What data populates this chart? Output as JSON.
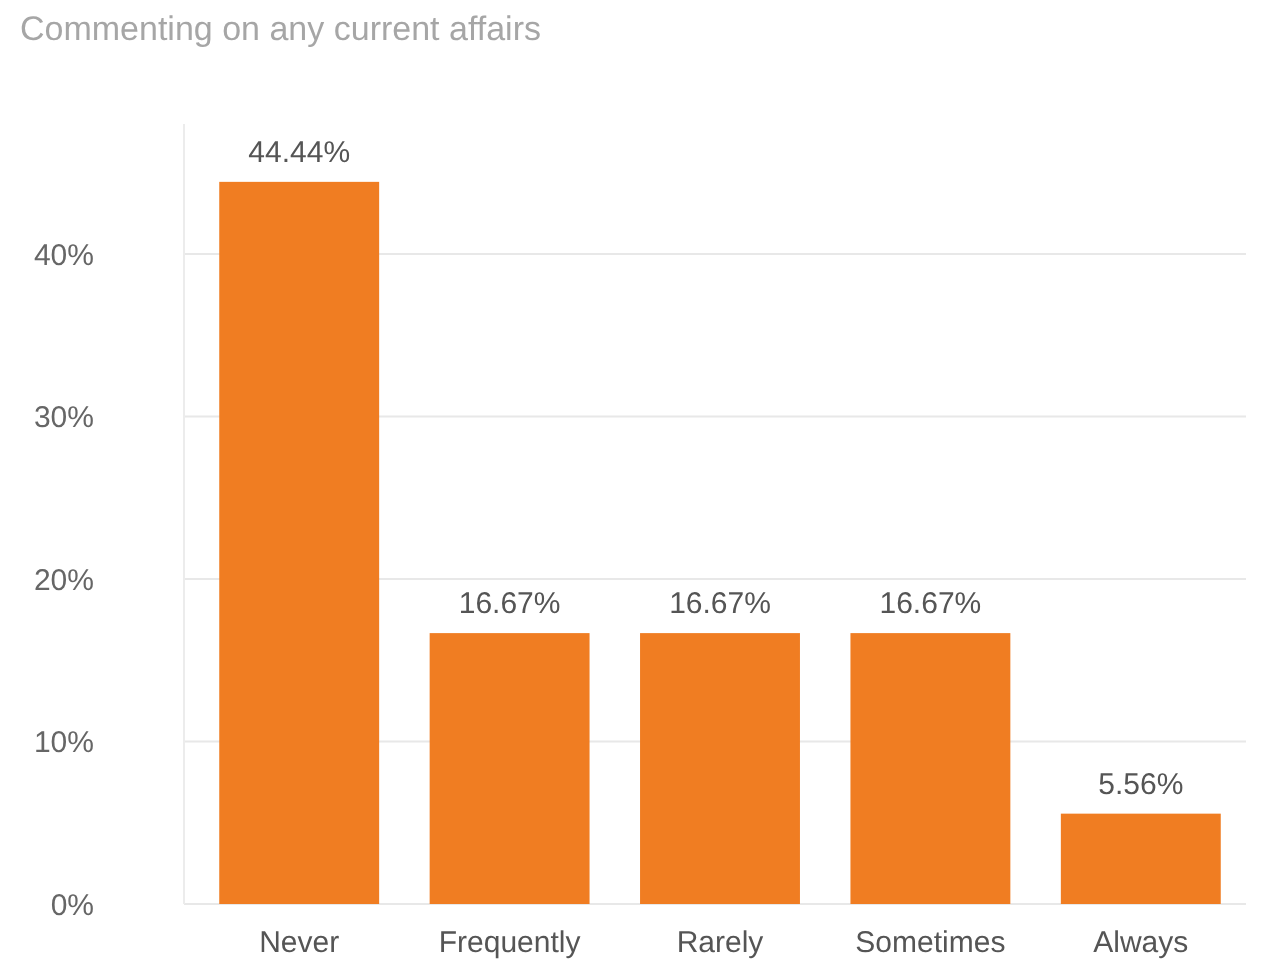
{
  "chart_data": {
    "type": "bar",
    "title": "Commenting on any current affairs",
    "categories": [
      "Never",
      "Frequently",
      "Rarely",
      "Sometimes",
      "Always"
    ],
    "values": [
      44.44,
      16.67,
      16.67,
      16.67,
      5.56
    ],
    "value_labels": [
      "44.44%",
      "16.67%",
      "16.67%",
      "16.67%",
      "5.56%"
    ],
    "color": "#f07d22",
    "ylim": [
      0,
      48
    ],
    "yticks": [
      {
        "value": 0,
        "label": "0%"
      },
      {
        "value": 10,
        "label": "10%"
      },
      {
        "value": 20,
        "label": "20%"
      },
      {
        "value": 30,
        "label": "30%"
      },
      {
        "value": 40,
        "label": "40%"
      }
    ],
    "grid": "y"
  }
}
